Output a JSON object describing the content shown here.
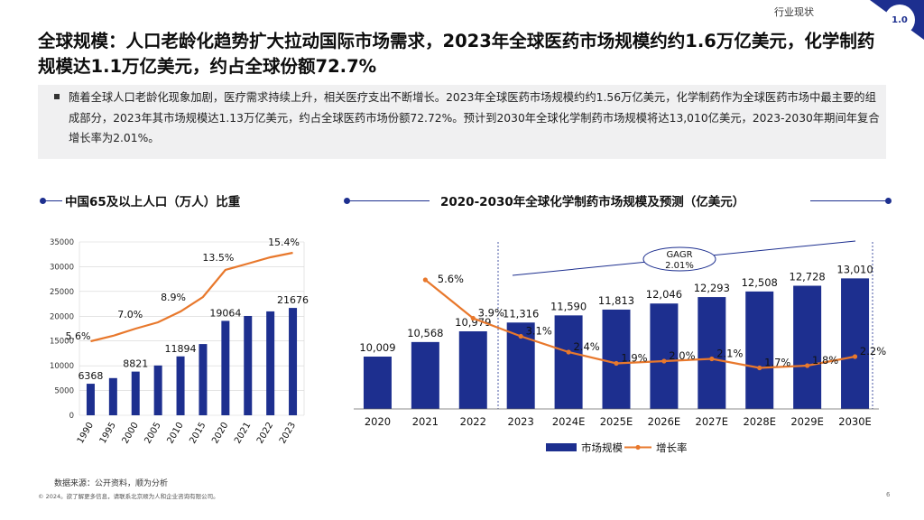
{
  "header": {
    "section_label": "行业现状",
    "section_number": "1.0",
    "title": "全球规模：人口老龄化趋势扩大拉动国际市场需求，2023年全球医药市场规模约约1.6万亿美元，化学制药规模达1.1万亿美元，约占全球份额72.7%"
  },
  "summary": {
    "text": "随着全球人口老龄化现象加剧，医疗需求持续上升，相关医疗支出不断增长。2023年全球医药市场规模约约1.56万亿美元，化学制药作为全球医药市场中最主要的组成部分，2023年其市场规模达1.13万亿美元，约占全球医药市场份额72.72%。预计到2030年全球化学制药市场规模将达13,010亿美元，2023-2030年期间年复合增长率为2.01%。"
  },
  "footer": {
    "source": "数据来源：公开资料，顺为分析",
    "copyright": "© 2024。欲了解更多信息，请联系北京顺为人和企业咨询有限公司。",
    "page": "6"
  },
  "colors": {
    "bar": "#1d2f8f",
    "line": "#e8782c",
    "accent": "#1d2f8f"
  },
  "chart_data": [
    {
      "type": "bar",
      "title": "中国65及以上人口（万人）比重",
      "categories": [
        "1990",
        "1995",
        "2000",
        "2005",
        "2010",
        "2015",
        "2020",
        "2021",
        "2022",
        "2023"
      ],
      "series": [
        {
          "type": "bar",
          "values": [
            6368,
            7510,
            8821,
            10055,
            11894,
            14386,
            19064,
            20056,
            20978,
            21676
          ]
        },
        {
          "type": "line",
          "values": [
            5.6,
            6.2,
            7.0,
            7.7,
            8.9,
            10.5,
            13.5,
            14.2,
            14.9,
            15.4
          ]
        }
      ],
      "bar_labels": [
        {
          "index": 0,
          "text": "6368"
        },
        {
          "index": 2,
          "text": "8821"
        },
        {
          "index": 4,
          "text": "11894"
        },
        {
          "index": 6,
          "text": "19064"
        },
        {
          "index": 9,
          "text": "21676"
        }
      ],
      "line_labels": [
        {
          "index": 0,
          "text": "5.6%"
        },
        {
          "index": 2,
          "text": "7.0%"
        },
        {
          "index": 4,
          "text": "8.9%"
        },
        {
          "index": 6,
          "text": "13.5%"
        },
        {
          "index": 9,
          "text": "15.4%"
        }
      ],
      "ylim": [
        0,
        35000
      ],
      "yticks": [
        0,
        5000,
        10000,
        15000,
        20000,
        25000,
        30000,
        35000
      ],
      "grid": true
    },
    {
      "type": "bar",
      "title": "2020-2030年全球化学制药市场规模及预测（亿美元）",
      "categories": [
        "2020",
        "2021",
        "2022",
        "2023",
        "2024E",
        "2025E",
        "2026E",
        "2027E",
        "2028E",
        "2029E",
        "2030E"
      ],
      "series": [
        {
          "name": "市场规模",
          "type": "bar",
          "values": [
            10009,
            10568,
            10979,
            11316,
            11590,
            11813,
            12046,
            12293,
            12508,
            12728,
            13010
          ]
        },
        {
          "name": "增长率",
          "type": "line",
          "values": [
            null,
            5.6,
            3.9,
            3.1,
            2.4,
            1.9,
            2.0,
            2.1,
            1.7,
            1.8,
            2.2
          ]
        }
      ],
      "bar_labels": [
        "10,009",
        "10,568",
        "10,979",
        "11,316",
        "11,590",
        "11,813",
        "12,046",
        "12,293",
        "12,508",
        "12,728",
        "13,010"
      ],
      "line_labels": [
        "",
        "5.6%",
        "3.9%",
        "3.1%",
        "2.4%",
        "1.9%",
        "2.0%",
        "2.1%",
        "1.7%",
        "1.8%",
        "2.2%"
      ],
      "annotation": {
        "label": "GAGR",
        "value": "2.01%"
      },
      "legend": "bottom"
    }
  ]
}
